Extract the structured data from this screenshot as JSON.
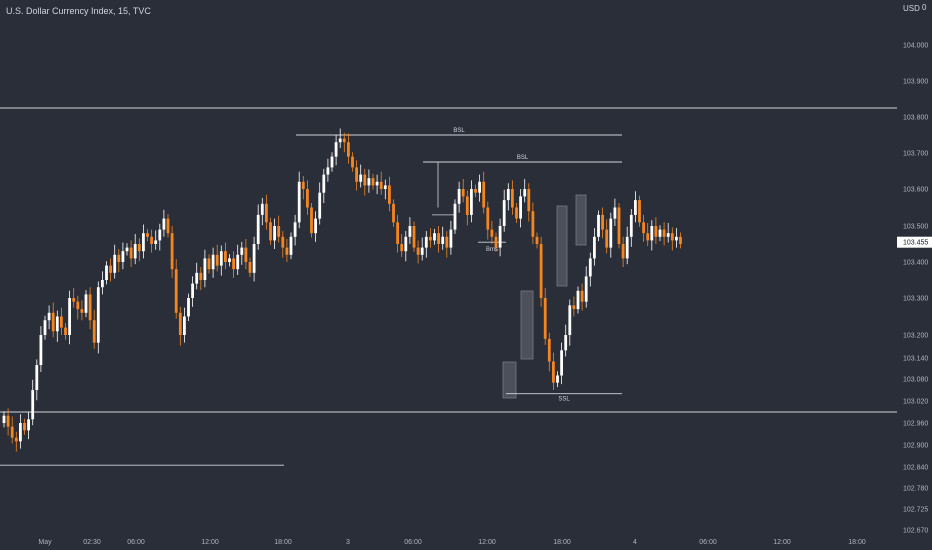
{
  "header": {
    "title": "U.S. Dollar Currency Index, 15, TVC",
    "currency": "USD",
    "bell": "0"
  },
  "colors": {
    "background": "#2a2e39",
    "up": "#ffffff",
    "down": "#f5861f",
    "line": "#d1d4dc",
    "axis_text": "#b2b5be",
    "zone": "#787b86",
    "price_label_bg": "#ffffff"
  },
  "chart_data": {
    "type": "candlestick",
    "y_ticks": [
      "104.000",
      "103.900",
      "103.800",
      "103.700",
      "103.600",
      "103.500",
      "103.400",
      "103.300",
      "103.200",
      "103.140",
      "103.080",
      "103.020",
      "102.960",
      "102.900",
      "102.840",
      "102.780",
      "102.725",
      "102.670"
    ],
    "x_ticks": [
      "May",
      "02:30",
      "06:00",
      "12:00",
      "18:00",
      "3",
      "06:00",
      "12:00",
      "18:00",
      "4",
      "06:00",
      "12:00",
      "18:00"
    ],
    "current_price": "103.455",
    "levels": [
      {
        "label": "",
        "price": 103.825
      },
      {
        "label": "BSL",
        "price": 103.75
      },
      {
        "label": "BSL",
        "price": 103.675
      },
      {
        "label": "",
        "price": 103.455
      },
      {
        "label": "SSL",
        "price": 103.04
      },
      {
        "label": "",
        "price": 102.99
      },
      {
        "label": "",
        "price": 102.845
      }
    ],
    "annotations": [
      {
        "label": "Bms",
        "price": 103.455
      }
    ],
    "closes": [
      102.98,
      102.95,
      102.92,
      102.91,
      102.96,
      102.94,
      102.97,
      103.05,
      103.12,
      103.2,
      103.24,
      103.26,
      103.21,
      103.25,
      103.22,
      103.2,
      103.3,
      103.29,
      103.27,
      103.26,
      103.31,
      103.24,
      103.18,
      103.33,
      103.35,
      103.39,
      103.37,
      103.42,
      103.4,
      103.43,
      103.44,
      103.41,
      103.45,
      103.43,
      103.48,
      103.47,
      103.45,
      103.46,
      103.49,
      103.52,
      103.48,
      103.38,
      103.26,
      103.2,
      103.25,
      103.3,
      103.34,
      103.37,
      103.35,
      103.41,
      103.38,
      103.42,
      103.39,
      103.43,
      103.4,
      103.41,
      103.38,
      103.42,
      103.44,
      103.4,
      103.37,
      103.45,
      103.53,
      103.56,
      103.51,
      103.46,
      103.5,
      103.47,
      103.44,
      103.42,
      103.47,
      103.51,
      103.62,
      103.6,
      103.55,
      103.48,
      103.52,
      103.59,
      103.64,
      103.66,
      103.69,
      103.73,
      103.74,
      103.73,
      103.69,
      103.66,
      103.62,
      103.64,
      103.61,
      103.63,
      103.61,
      103.62,
      103.6,
      103.61,
      103.56,
      103.51,
      103.45,
      103.43,
      103.47,
      103.5,
      103.44,
      103.42,
      103.44,
      103.47,
      103.46,
      103.48,
      103.45,
      103.47,
      103.44,
      103.49,
      103.56,
      103.6,
      103.58,
      103.53,
      103.6,
      103.59,
      103.62,
      103.55,
      103.49,
      103.47,
      103.44,
      103.5,
      103.57,
      103.6,
      103.55,
      103.52,
      103.58,
      103.6,
      103.54,
      103.47,
      103.45,
      103.3,
      103.19,
      103.13,
      103.07,
      103.09,
      103.16,
      103.2,
      103.28,
      103.27,
      103.32,
      103.29,
      103.36,
      103.41,
      103.47,
      103.53,
      103.49,
      103.44,
      103.52,
      103.55,
      103.45,
      103.41,
      103.47,
      103.53,
      103.57,
      103.51,
      103.48,
      103.46,
      103.5,
      103.47,
      103.49,
      103.47,
      103.48,
      103.46,
      103.47,
      103.45
    ]
  }
}
